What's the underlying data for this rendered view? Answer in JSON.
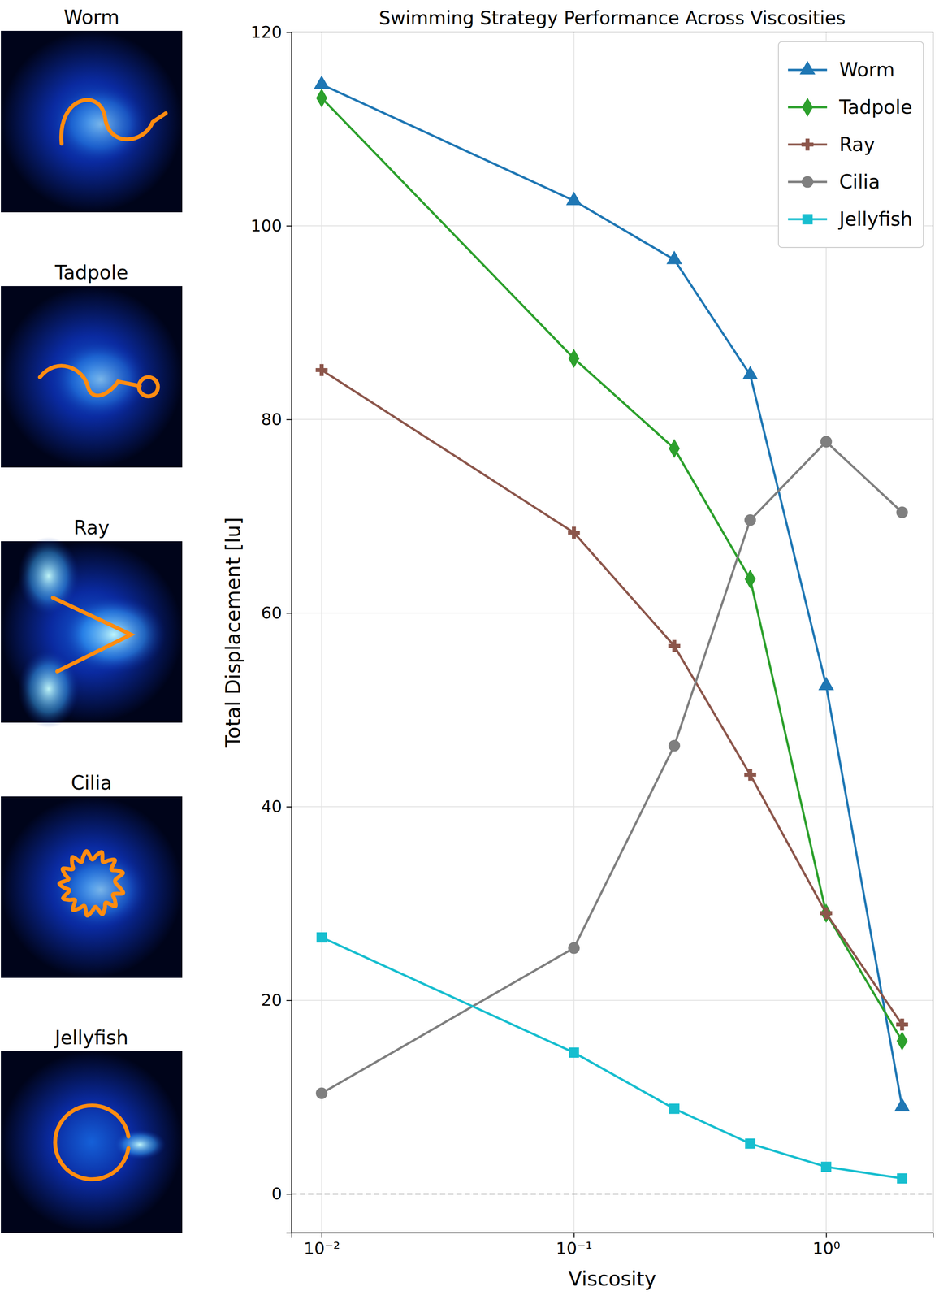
{
  "chart_data": {
    "type": "line",
    "title": "Swimming Strategy Performance Across Viscosities",
    "x_label": "Viscosity",
    "y_label": "Total Displacement [lu]",
    "x": [
      0.01,
      0.1,
      0.25,
      0.5,
      1,
      2
    ],
    "series": [
      {
        "name": "Worm",
        "color": "#1f77b4",
        "marker": "triangle",
        "values": [
          114.6,
          102.6,
          96.5,
          84.6,
          52.5,
          9.0
        ]
      },
      {
        "name": "Tadpole",
        "color": "#2ca02c",
        "marker": "diamond",
        "values": [
          113.2,
          86.3,
          77.0,
          63.5,
          29.0,
          15.8
        ]
      },
      {
        "name": "Ray",
        "color": "#8c564b",
        "marker": "plus",
        "values": [
          85.1,
          68.3,
          56.6,
          43.3,
          29.0,
          17.5
        ]
      },
      {
        "name": "Cilia",
        "color": "#7f7f7f",
        "marker": "circle",
        "values": [
          10.4,
          25.4,
          46.3,
          69.6,
          77.7,
          70.4
        ]
      },
      {
        "name": "Jellyfish",
        "color": "#17becf",
        "marker": "square",
        "values": [
          26.5,
          14.6,
          8.8,
          5.2,
          2.8,
          1.6
        ]
      }
    ],
    "xlim": [
      0.0076,
      2.65
    ],
    "xticks": [
      {
        "value": 0.01,
        "label": "10⁻²"
      },
      {
        "value": 0.1,
        "label": "10⁻¹"
      },
      {
        "value": 1,
        "label": "10⁰"
      }
    ],
    "ylim": [
      -4,
      120
    ],
    "yticks": [
      0,
      20,
      40,
      60,
      80,
      100,
      120
    ],
    "reference_lines": [
      0
    ],
    "log": "x",
    "grid": true,
    "legend": "upper right"
  },
  "panels": [
    "Worm",
    "Tadpole",
    "Ray",
    "Cilia",
    "Jellyfish"
  ]
}
